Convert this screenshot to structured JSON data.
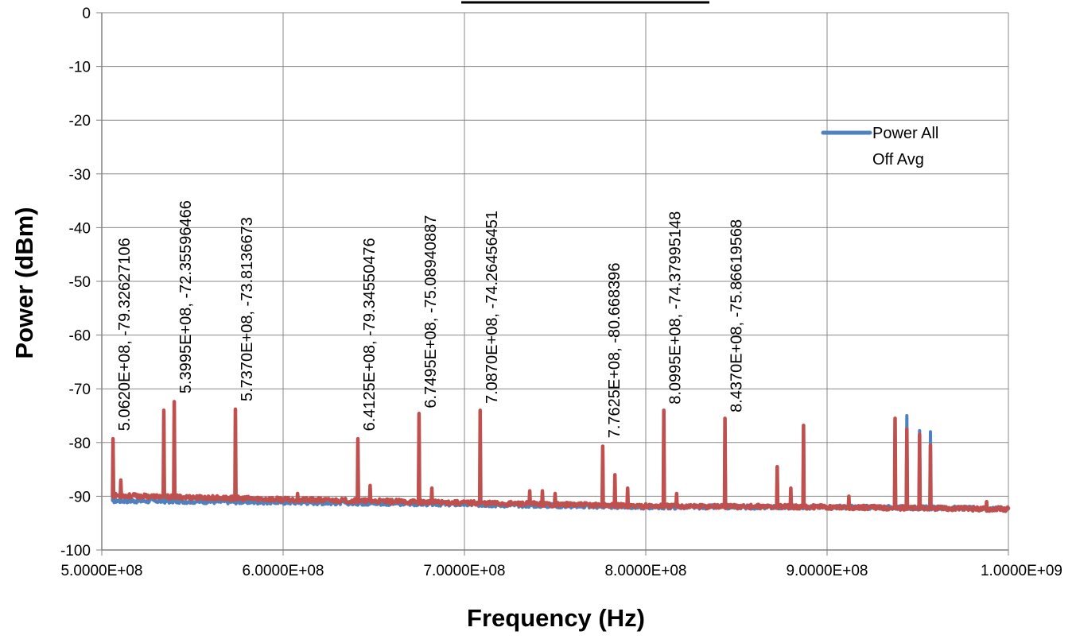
{
  "chart_data": {
    "type": "line",
    "title": "",
    "xlabel": "Frequency (Hz)",
    "ylabel": "Power (dBm)",
    "xlim": [
      500000000,
      1000000000
    ],
    "ylim": [
      -100,
      0
    ],
    "x_ticks": [
      500000000,
      600000000,
      700000000,
      800000000,
      900000000,
      1000000000
    ],
    "x_tick_labels": [
      "5.0000E+08",
      "6.0000E+08",
      "7.0000E+08",
      "8.0000E+08",
      "9.0000E+08",
      "1.0000E+09"
    ],
    "y_ticks": [
      0,
      -10,
      -20,
      -30,
      -40,
      -50,
      -60,
      -70,
      -80,
      -90,
      -100
    ],
    "y_tick_labels": [
      "0",
      "-10",
      "-20",
      "-30",
      "-40",
      "-50",
      "-60",
      "-70",
      "-80",
      "-90",
      "-100"
    ],
    "grid": "major vertical and horizontal",
    "legend": {
      "position": "right",
      "entries": [
        {
          "label_line1": "Power All",
          "label_line2": "Off Avg",
          "color": "#4f81bd"
        }
      ]
    },
    "series": [
      {
        "name": "Power All Off Avg",
        "color": "#4f81bd",
        "baseline": [
          [
            500000000,
            -90.8
          ],
          [
            600000000,
            -91.1
          ],
          [
            700000000,
            -91.5
          ],
          [
            800000000,
            -92.0
          ],
          [
            900000000,
            -92.0
          ],
          [
            1000000000,
            -92.3
          ]
        ],
        "peaks": [
          {
            "x": 506200000,
            "y": -79.3
          },
          {
            "x": 534200000,
            "y": -74.0
          },
          {
            "x": 539950000,
            "y": -72.4
          },
          {
            "x": 573700000,
            "y": -73.8
          },
          {
            "x": 641250000,
            "y": -79.3
          },
          {
            "x": 674950000,
            "y": -75.1
          },
          {
            "x": 708700000,
            "y": -74.3
          },
          {
            "x": 776250000,
            "y": -80.7
          },
          {
            "x": 809950000,
            "y": -74.4
          },
          {
            "x": 843700000,
            "y": -75.9
          },
          {
            "x": 872500000,
            "y": -84.5
          },
          {
            "x": 887000000,
            "y": -76.8
          },
          {
            "x": 937500000,
            "y": -75.5
          },
          {
            "x": 944000000,
            "y": -75.0
          },
          {
            "x": 951000000,
            "y": -77.8
          },
          {
            "x": 957000000,
            "y": -78.0
          }
        ]
      },
      {
        "name": "",
        "color": "#c0504d",
        "baseline": [
          [
            500000000,
            -89.8
          ],
          [
            600000000,
            -90.6
          ],
          [
            700000000,
            -91.2
          ],
          [
            800000000,
            -91.8
          ],
          [
            900000000,
            -92.0
          ],
          [
            1000000000,
            -92.4
          ]
        ],
        "peaks": [
          {
            "x": 506200000,
            "y": -79.3
          },
          {
            "x": 510500000,
            "y": -87.0
          },
          {
            "x": 534200000,
            "y": -74.0
          },
          {
            "x": 539950000,
            "y": -72.4
          },
          {
            "x": 573700000,
            "y": -73.8
          },
          {
            "x": 608000000,
            "y": -89.5
          },
          {
            "x": 641250000,
            "y": -79.3
          },
          {
            "x": 648000000,
            "y": -88.0
          },
          {
            "x": 674950000,
            "y": -74.6
          },
          {
            "x": 682000000,
            "y": -88.5
          },
          {
            "x": 708700000,
            "y": -74.0
          },
          {
            "x": 736000000,
            "y": -89.0
          },
          {
            "x": 743000000,
            "y": -89.0
          },
          {
            "x": 750000000,
            "y": -89.5
          },
          {
            "x": 776250000,
            "y": -80.7
          },
          {
            "x": 783000000,
            "y": -86.0
          },
          {
            "x": 790000000,
            "y": -88.5
          },
          {
            "x": 809950000,
            "y": -74.0
          },
          {
            "x": 817000000,
            "y": -89.5
          },
          {
            "x": 843700000,
            "y": -75.5
          },
          {
            "x": 872500000,
            "y": -84.5
          },
          {
            "x": 880000000,
            "y": -88.5
          },
          {
            "x": 887000000,
            "y": -76.8
          },
          {
            "x": 912000000,
            "y": -90.0
          },
          {
            "x": 937500000,
            "y": -75.5
          },
          {
            "x": 944000000,
            "y": -77.5
          },
          {
            "x": 951000000,
            "y": -78.5
          },
          {
            "x": 957000000,
            "y": -80.5
          },
          {
            "x": 988000000,
            "y": -91.0
          }
        ]
      }
    ],
    "annotations": [
      {
        "x": 506200000,
        "y": -79.32627106,
        "text": "5.0620E+08, -79.32627106"
      },
      {
        "x": 539950000,
        "y": -72.35596466,
        "text": "5.3995E+08, -72.35596466"
      },
      {
        "x": 573700000,
        "y": -73.8136673,
        "text": "5.7370E+08, -73.8136673"
      },
      {
        "x": 641250000,
        "y": -79.34550476,
        "text": "6.4125E+08, -79.34550476"
      },
      {
        "x": 674950000,
        "y": -75.08940887,
        "text": "6.7495E+08, -75.08940887"
      },
      {
        "x": 708700000,
        "y": -74.26456451,
        "text": "7.0870E+08, -74.26456451"
      },
      {
        "x": 776250000,
        "y": -80.668396,
        "text": "7.7625E+08, -80.668396"
      },
      {
        "x": 809950000,
        "y": -74.37995148,
        "text": "8.0995E+08, -74.37995148"
      },
      {
        "x": 843700000,
        "y": -75.86619568,
        "text": "8.4370E+08, -75.86619568"
      }
    ]
  }
}
